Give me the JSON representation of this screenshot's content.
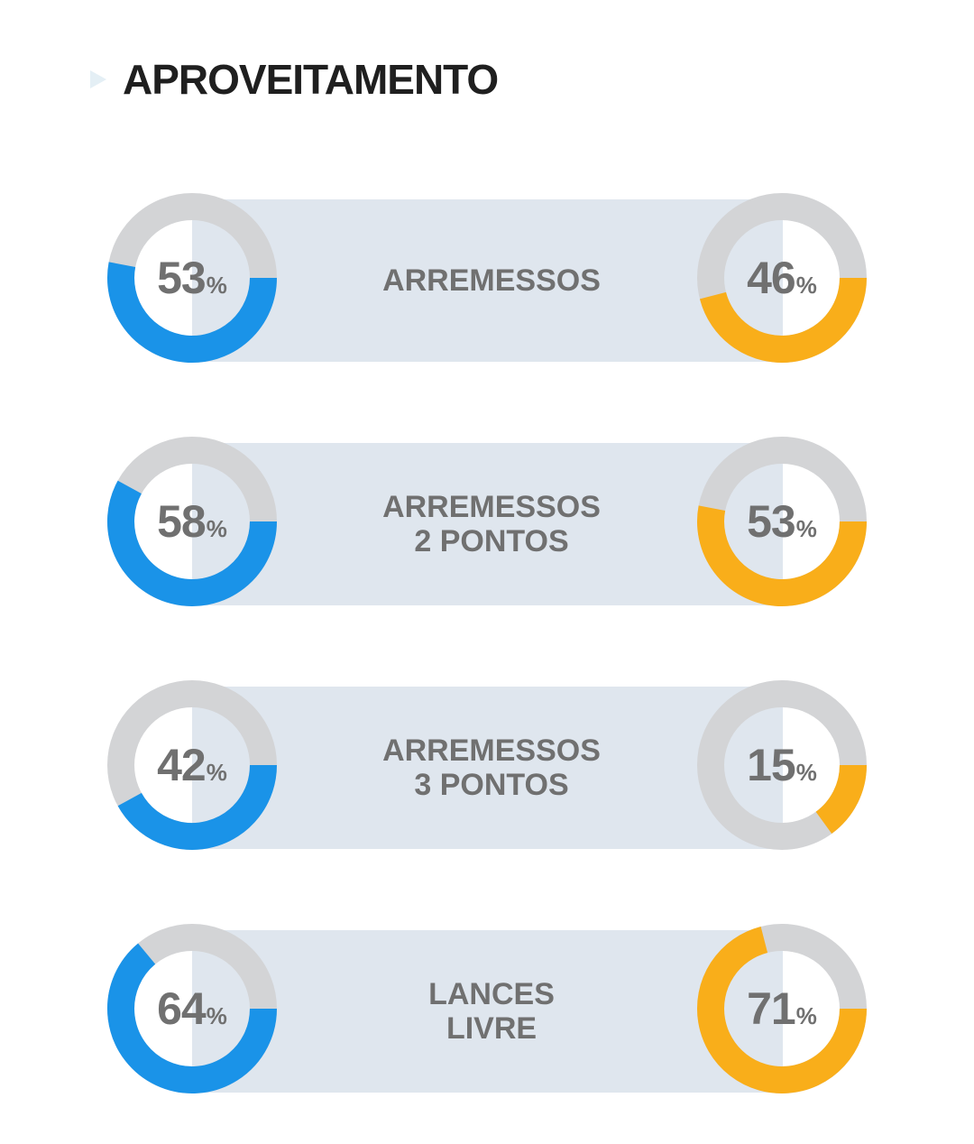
{
  "title": "APROVEITAMENTO",
  "percent_symbol": "%",
  "colors": {
    "left": "#1a93e8",
    "right": "#f9ae1a",
    "track": "#d3d4d6",
    "band": "#dfe6ee",
    "text": "#707070"
  },
  "chart_data": {
    "type": "donut",
    "title": "APROVEITAMENTO",
    "unit": "%",
    "categories": [
      "ARREMESSOS",
      "ARREMESSOS 2 PONTOS",
      "ARREMESSOS 3 PONTOS",
      "LANCES LIVRE"
    ],
    "series": [
      {
        "values": [
          53,
          58,
          42,
          64
        ]
      },
      {
        "values": [
          46,
          53,
          15,
          71
        ]
      }
    ]
  },
  "rows": [
    {
      "label_lines": [
        "ARREMESSOS"
      ],
      "left": {
        "value": "53"
      },
      "right": {
        "value": "46"
      }
    },
    {
      "label_lines": [
        "ARREMESSOS",
        "2 PONTOS"
      ],
      "left": {
        "value": "58"
      },
      "right": {
        "value": "53"
      }
    },
    {
      "label_lines": [
        "ARREMESSOS",
        "3 PONTOS"
      ],
      "left": {
        "value": "42"
      },
      "right": {
        "value": "15"
      }
    },
    {
      "label_lines": [
        "LANCES",
        "LIVRE"
      ],
      "left": {
        "value": "64"
      },
      "right": {
        "value": "71"
      }
    }
  ]
}
